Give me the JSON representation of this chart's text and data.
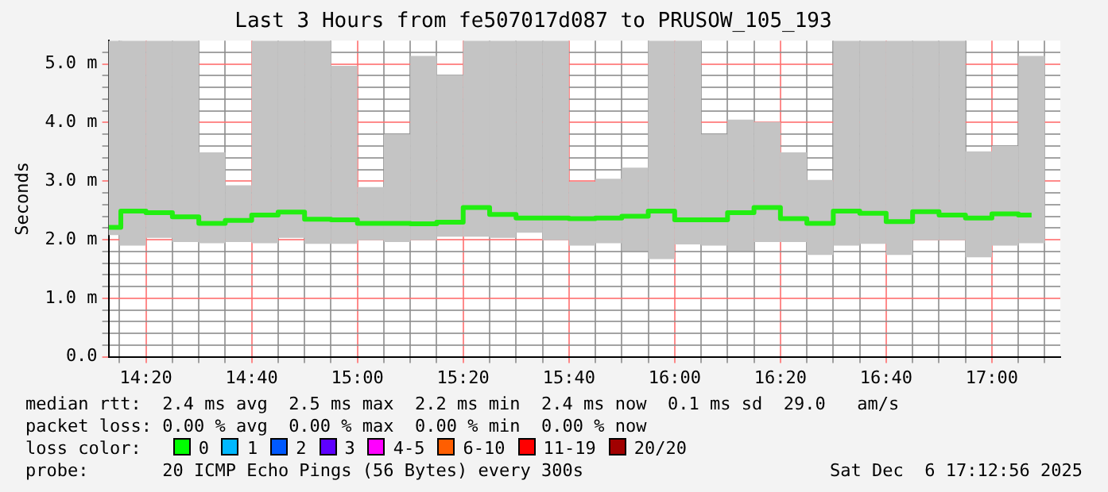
{
  "chart_data": {
    "type": "bar",
    "title": "Last 3 Hours from fe507017d087 to PRUSOW_105_193",
    "ylabel": "Seconds",
    "x": [
      14.2167,
      14.2917,
      14.375,
      14.4583,
      14.5417,
      14.625,
      14.7083,
      14.7917,
      14.875,
      14.9583,
      15.0417,
      15.125,
      15.2083,
      15.2917,
      15.375,
      15.4583,
      15.5417,
      15.625,
      15.7083,
      15.7917,
      15.875,
      15.9583,
      16.0417,
      16.125,
      16.2083,
      16.2917,
      16.375,
      16.4583,
      16.5417,
      16.625,
      16.7083,
      16.7917,
      16.875,
      16.9583,
      17.0417,
      17.125
    ],
    "series": [
      {
        "color": "#c4c4c4",
        "base": [
          2.08,
          1.9,
          2.03,
          1.96,
          1.94,
          1.96,
          1.94,
          2.03,
          1.93,
          1.93,
          1.99,
          1.96,
          1.99,
          2.05,
          2.05,
          2.03,
          2.12,
          1.99,
          1.9,
          1.94,
          1.81,
          1.67,
          1.92,
          1.9,
          1.81,
          1.96,
          1.96,
          1.74,
          1.9,
          1.93,
          1.74,
          1.99,
          1.99,
          1.7,
          1.9,
          1.94
        ],
        "values": [
          3.32,
          3.5,
          3.37,
          3.44,
          1.55,
          0.97,
          3.46,
          3.37,
          3.47,
          3.04,
          0.91,
          1.84,
          3.15,
          2.76,
          3.35,
          3.37,
          3.28,
          3.41,
          1.09,
          1.1,
          1.42,
          3.73,
          3.48,
          1.9,
          2.24,
          2.05,
          1.53,
          1.28,
          3.5,
          3.47,
          3.66,
          3.41,
          3.41,
          1.81,
          1.7,
          3.2
        ]
      },
      {
        "type": "step",
        "color": "#22ee11",
        "values": [
          2.21,
          2.49,
          2.46,
          2.39,
          2.28,
          2.33,
          2.42,
          2.47,
          2.35,
          2.34,
          2.28,
          2.28,
          2.27,
          2.3,
          2.55,
          2.43,
          2.37,
          2.37,
          2.36,
          2.37,
          2.4,
          2.49,
          2.34,
          2.34,
          2.46,
          2.55,
          2.36,
          2.28,
          2.49,
          2.45,
          2.31,
          2.48,
          2.42,
          2.37,
          2.44,
          2.42
        ]
      }
    ],
    "xlim": [
      14.2156,
      17.2156
    ],
    "xticks": [
      {
        "value": 14.25,
        "label": null
      },
      {
        "value": 14.3333,
        "label": "14:20"
      },
      {
        "value": 14.4167,
        "label": null
      },
      {
        "value": 14.5,
        "label": null
      },
      {
        "value": 14.5833,
        "label": null
      },
      {
        "value": 14.6667,
        "label": "14:40"
      },
      {
        "value": 14.75,
        "label": null
      },
      {
        "value": 14.8333,
        "label": null
      },
      {
        "value": 14.9167,
        "label": null
      },
      {
        "value": 15,
        "label": "15:00"
      },
      {
        "value": 15.0833,
        "label": null
      },
      {
        "value": 15.1667,
        "label": null
      },
      {
        "value": 15.25,
        "label": null
      },
      {
        "value": 15.3333,
        "label": "15:20"
      },
      {
        "value": 15.4167,
        "label": null
      },
      {
        "value": 15.5,
        "label": null
      },
      {
        "value": 15.5833,
        "label": null
      },
      {
        "value": 15.6667,
        "label": "15:40"
      },
      {
        "value": 15.75,
        "label": null
      },
      {
        "value": 15.8333,
        "label": null
      },
      {
        "value": 15.9167,
        "label": null
      },
      {
        "value": 16,
        "label": "16:00"
      },
      {
        "value": 16.0833,
        "label": null
      },
      {
        "value": 16.1667,
        "label": null
      },
      {
        "value": 16.25,
        "label": null
      },
      {
        "value": 16.3333,
        "label": "16:20"
      },
      {
        "value": 16.4167,
        "label": null
      },
      {
        "value": 16.5,
        "label": null
      },
      {
        "value": 16.5833,
        "label": null
      },
      {
        "value": 16.6667,
        "label": "16:40"
      },
      {
        "value": 16.75,
        "label": null
      },
      {
        "value": 16.8333,
        "label": null
      },
      {
        "value": 16.9167,
        "label": null
      },
      {
        "value": 17,
        "label": "17:00"
      },
      {
        "value": 17.0833,
        "label": null
      },
      {
        "value": 17.1667,
        "label": null
      }
    ],
    "ylim": [
      0,
      5.4
    ],
    "yticks": [
      {
        "value": 0,
        "label": "0.0"
      },
      {
        "value": 0.2,
        "label": null
      },
      {
        "value": 0.4,
        "label": null
      },
      {
        "value": 0.6,
        "label": null
      },
      {
        "value": 0.8,
        "label": null
      },
      {
        "value": 1,
        "label": "1.0 m"
      },
      {
        "value": 1.2,
        "label": null
      },
      {
        "value": 1.4,
        "label": null
      },
      {
        "value": 1.6,
        "label": null
      },
      {
        "value": 1.8,
        "label": null
      },
      {
        "value": 2,
        "label": "2.0 m"
      },
      {
        "value": 2.2,
        "label": null
      },
      {
        "value": 2.4,
        "label": null
      },
      {
        "value": 2.6,
        "label": null
      },
      {
        "value": 2.8,
        "label": null
      },
      {
        "value": 3,
        "label": "3.0 m"
      },
      {
        "value": 3.2,
        "label": null
      },
      {
        "value": 3.4,
        "label": null
      },
      {
        "value": 3.6,
        "label": null
      },
      {
        "value": 3.8,
        "label": null
      },
      {
        "value": 4,
        "label": "4.0 m"
      },
      {
        "value": 4.2,
        "label": null
      },
      {
        "value": 4.4,
        "label": null
      },
      {
        "value": 4.6,
        "label": null
      },
      {
        "value": 4.8,
        "label": null
      },
      {
        "value": 5,
        "label": "5.0 m"
      },
      {
        "value": 5.2,
        "label": null
      }
    ],
    "grid": true,
    "annotations": [
      "median rtt:  2.4 ms avg  2.5 ms max  2.2 ms min  2.4 ms now  0.1 ms sd  29.0   am/s",
      "packet loss: 0.00 % avg  0.00 % max  0.00 % min  0.00 % now",
      "loss color:",
      "0",
      "1",
      "2",
      "3",
      "4-5",
      "6-10",
      "11-19",
      "20/20",
      "probe:       20 ICMP Echo Pings (56 Bytes) every 300s",
      "Sat Dec  6 17:12:56 2025"
    ]
  }
}
